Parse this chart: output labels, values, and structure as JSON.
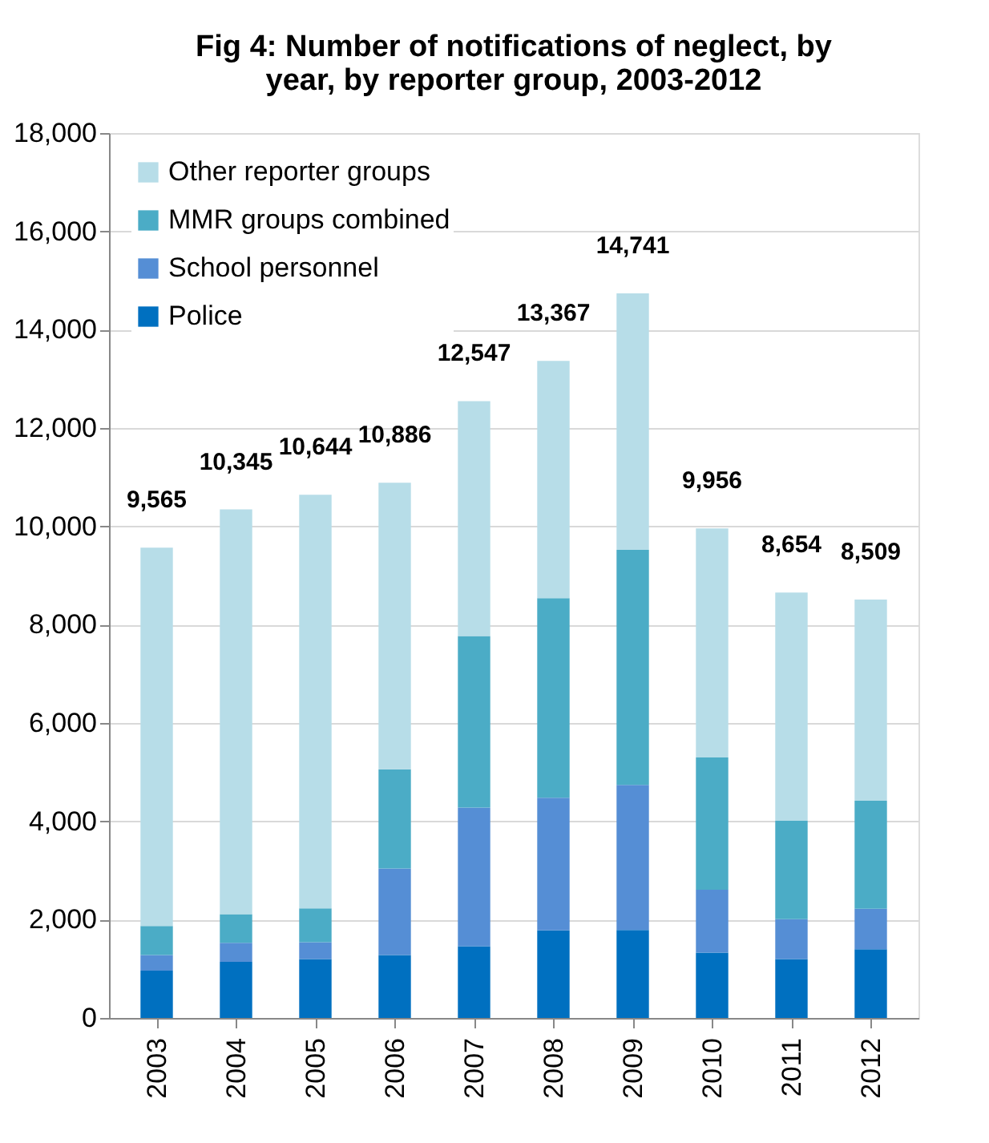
{
  "chart_data": {
    "type": "bar",
    "title": [
      "Fig 4:  Number of notifications of neglect, by",
      "year, by reporter group, 2003-2012"
    ],
    "categories": [
      "2003",
      "2004",
      "2005",
      "2006",
      "2007",
      "2008",
      "2009",
      "2010",
      "2011",
      "2012"
    ],
    "stacked": true,
    "series": [
      {
        "name": "Police",
        "color": "#0070c0",
        "values": [
          960,
          1140,
          1200,
          1280,
          1460,
          1780,
          1790,
          1330,
          1200,
          1400
        ]
      },
      {
        "name": "School personnel",
        "color": "#558ed5",
        "values": [
          320,
          390,
          340,
          1760,
          2820,
          2700,
          2950,
          1280,
          810,
          820
        ]
      },
      {
        "name": "MMR groups combined",
        "color": "#4bacc6",
        "values": [
          590,
          580,
          690,
          2020,
          3490,
          4060,
          4780,
          2690,
          2000,
          2200
        ]
      },
      {
        "name": "Other reporter groups",
        "color": "#b7dde8",
        "values": [
          7695,
          8235,
          8414,
          5826,
          4777,
          4827,
          5221,
          4656,
          4644,
          4089
        ]
      }
    ],
    "totals": [
      "9,565",
      "10,345",
      "10,644",
      "10,886",
      "12,547",
      "13,367",
      "14,741",
      "9,956",
      "8,654",
      "8,509"
    ],
    "ylim": [
      0,
      18000
    ],
    "yticks": [
      0,
      {
        "value": 2000,
        "label": "2,000"
      },
      {
        "value": 4000,
        "label": "4,000"
      },
      {
        "value": 6000,
        "label": "6,000"
      },
      {
        "value": 8000,
        "label": "8,000"
      },
      {
        "value": 10000,
        "label": "10,000"
      },
      {
        "value": 12000,
        "label": "12,000"
      },
      {
        "value": 14000,
        "label": "14,000"
      },
      {
        "value": 16000,
        "label": "16,000"
      },
      {
        "value": 18000,
        "label": "18,000"
      }
    ],
    "grid": "y",
    "legend": "top left"
  }
}
